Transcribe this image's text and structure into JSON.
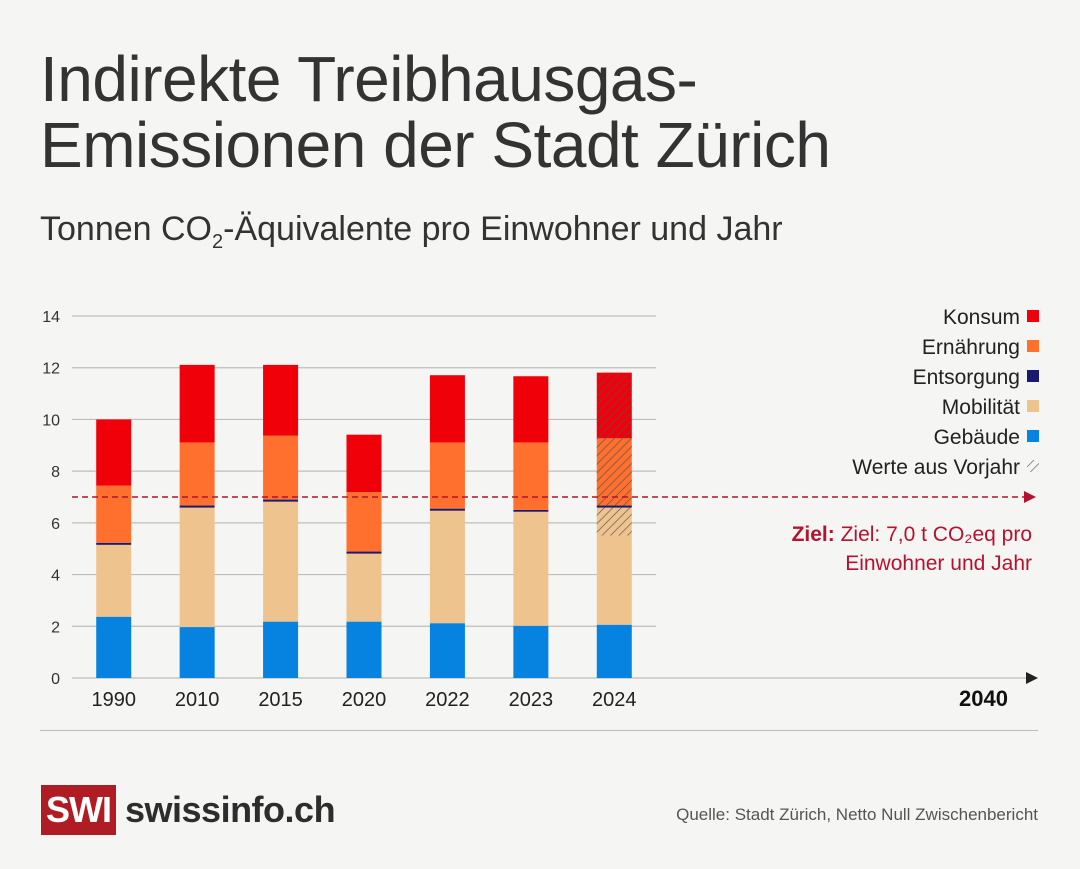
{
  "header": {
    "title_line1": "Indirekte Treibhausgas-",
    "title_line2": "Emissionen der Stadt Zürich",
    "subtitle_pre": "Tonnen CO",
    "subtitle_sub": "2",
    "subtitle_post": "-Äquivalente pro Einwohner und Jahr"
  },
  "chart_data": {
    "type": "bar",
    "stacked": true,
    "title": "Indirekte Treibhausgas-Emissionen der Stadt Zürich",
    "ylabel": "Tonnen CO2-Äquivalente pro Einwohner und Jahr",
    "ylim": [
      0,
      14
    ],
    "yticks": [
      0,
      2,
      4,
      6,
      8,
      10,
      12,
      14
    ],
    "grid": true,
    "legend_position": "right",
    "categories": [
      "1990",
      "2010",
      "2015",
      "2020",
      "2022",
      "2023",
      "2024"
    ],
    "series": [
      {
        "name": "Gebäude",
        "color": "#0683e0",
        "values": [
          2.37,
          1.97,
          2.18,
          2.18,
          2.12,
          2.02,
          2.06
        ]
      },
      {
        "name": "Mobilität",
        "color": "#efc38e",
        "values": [
          2.78,
          4.62,
          4.64,
          2.63,
          4.35,
          4.41,
          4.53
        ]
      },
      {
        "name": "Entsorgung",
        "color": "#1a1a6e",
        "values": [
          0.08,
          0.08,
          0.08,
          0.08,
          0.08,
          0.07,
          0.08
        ]
      },
      {
        "name": "Ernährung",
        "color": "#ff6f2e",
        "values": [
          2.21,
          2.44,
          2.47,
          2.3,
          2.56,
          2.61,
          2.6
        ]
      },
      {
        "name": "Konsum",
        "color": "#f00008",
        "values": [
          2.56,
          3.0,
          2.74,
          2.22,
          2.6,
          2.56,
          2.54
        ]
      }
    ],
    "prior_year_values": {
      "name": "Werte aus Vorjahr",
      "category": "2024",
      "hatched": {
        "Mobilität": 1.08,
        "Ernährung": 2.6,
        "Konsum": 2.54
      }
    },
    "target": {
      "value": 7.0,
      "year": "2040",
      "color": "#b5122f",
      "label_bold": "Ziel:",
      "label_line1": "Ziel: 7,0 t CO₂eq pro",
      "label_line2": "Einwohner und Jahr"
    },
    "legend": [
      "Konsum",
      "Ernährung",
      "Entsorgung",
      "Mobilität",
      "Gebäude",
      "Werte aus Vorjahr"
    ],
    "axis_end_label": "2040"
  },
  "footer": {
    "logo_box": "SWI",
    "logo_text": "swissinfo.ch",
    "source": "Quelle: Stadt Zürich, Netto Null Zwischenbericht"
  }
}
